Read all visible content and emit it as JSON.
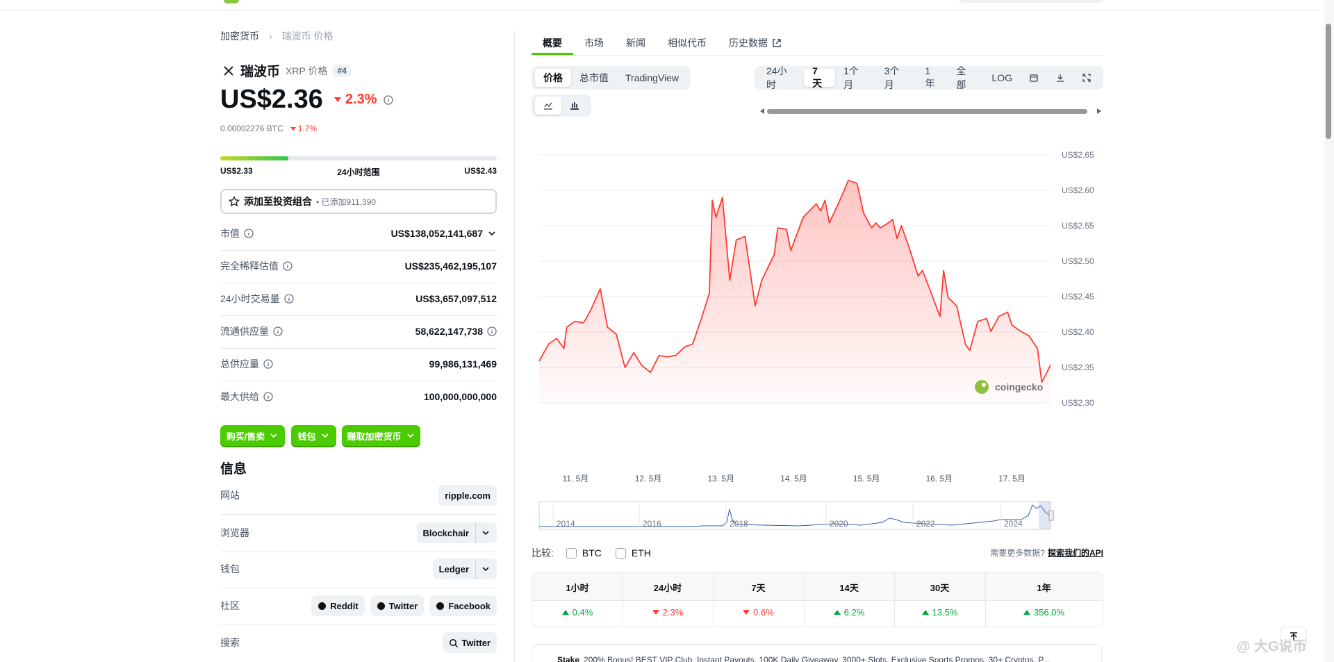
{
  "breadcrumb": [
    "加密货币",
    "瑞波币 价格"
  ],
  "coin": {
    "name": "瑞波币",
    "symbol": "XRP 价格",
    "rank": "#4",
    "price": "US$2.36",
    "change": "2.3%",
    "btc_price": "0.00002276 BTC",
    "btc_change": "1.7%"
  },
  "range": {
    "low": "US$2.33",
    "label": "24小时范围",
    "high": "US$2.43"
  },
  "portfolio": {
    "button": "添加至投资组合",
    "added": "• 已添加911,390"
  },
  "stats": [
    {
      "label": "市值",
      "value": "US$138,052,141,687"
    },
    {
      "label": "完全稀释估值",
      "value": "US$235,462,195,107"
    },
    {
      "label": "24小时交易量",
      "value": "US$3,657,097,512"
    },
    {
      "label": "流通供应量",
      "value": "58,622,147,738"
    },
    {
      "label": "总供应量",
      "value": "99,986,131,469"
    },
    {
      "label": "最大供给",
      "value": "100,000,000,000"
    }
  ],
  "actions": [
    "购买/售卖",
    "钱包",
    "赚取加密货币"
  ],
  "info": {
    "title": "信息",
    "rows": [
      {
        "label": "网站",
        "items": [
          "ripple.com"
        ]
      },
      {
        "label": "浏览器",
        "items": [
          "Blockchair"
        ]
      },
      {
        "label": "钱包",
        "items": [
          "Ledger"
        ]
      },
      {
        "label": "社区",
        "items": [
          "Reddit",
          "Twitter",
          "Facebook"
        ]
      },
      {
        "label": "搜索",
        "items": [
          "Twitter"
        ]
      }
    ]
  },
  "tabs": [
    "概要",
    "市场",
    "新闻",
    "相似代币",
    "历史数据"
  ],
  "chart_modes": [
    "价格",
    "总市值",
    "TradingView"
  ],
  "ranges": [
    "24小时",
    "7天",
    "1个月",
    "3个月",
    "1年",
    "全部",
    "LOG"
  ],
  "chart_data": {
    "type": "line",
    "color": "#ff3a33",
    "x": [
      10.5,
      10.63,
      10.74,
      10.84,
      10.88,
      10.99,
      11.11,
      11.21,
      11.34,
      11.44,
      11.56,
      11.68,
      11.8,
      11.91,
      12.03,
      12.15,
      12.26,
      12.38,
      12.5,
      12.61,
      12.73,
      12.84,
      12.88,
      12.93,
      13.02,
      13.12,
      13.21,
      13.33,
      13.47,
      13.56,
      13.73,
      13.78,
      13.9,
      13.96,
      14.13,
      14.31,
      14.37,
      14.43,
      14.49,
      14.66,
      14.75,
      14.87,
      14.96,
      15.07,
      15.13,
      15.19,
      15.3,
      15.36,
      15.42,
      15.48,
      15.6,
      15.71,
      15.77,
      15.89,
      16.01,
      16.06,
      16.12,
      16.24,
      16.36,
      16.42,
      16.53,
      16.65,
      16.71,
      16.82,
      16.94,
      17.0,
      17.12,
      17.23,
      17.35,
      17.41,
      17.53
    ],
    "values": [
      2.359,
      2.383,
      2.391,
      2.377,
      2.407,
      2.415,
      2.413,
      2.431,
      2.461,
      2.407,
      2.397,
      2.35,
      2.371,
      2.353,
      2.343,
      2.367,
      2.365,
      2.367,
      2.379,
      2.383,
      2.419,
      2.455,
      2.586,
      2.562,
      2.59,
      2.473,
      2.53,
      2.535,
      2.437,
      2.473,
      2.509,
      2.547,
      2.545,
      2.515,
      2.562,
      2.581,
      2.571,
      2.586,
      2.554,
      2.592,
      2.614,
      2.61,
      2.568,
      2.547,
      2.554,
      2.547,
      2.554,
      2.559,
      2.532,
      2.55,
      2.515,
      2.479,
      2.487,
      2.455,
      2.422,
      2.487,
      2.449,
      2.437,
      2.383,
      2.374,
      2.415,
      2.419,
      2.401,
      2.422,
      2.428,
      2.41,
      2.401,
      2.395,
      2.377,
      2.329,
      2.353
    ],
    "xlim": [
      10.5,
      17.53
    ],
    "xticks": [
      {
        "value": 11,
        "label": "11. 5月"
      },
      {
        "value": 12,
        "label": "12. 5月"
      },
      {
        "value": 13,
        "label": "13. 5月"
      },
      {
        "value": 14,
        "label": "14. 5月"
      },
      {
        "value": 15,
        "label": "15. 5月"
      },
      {
        "value": 16,
        "label": "16. 5月"
      },
      {
        "value": 17,
        "label": "17. 5月"
      }
    ],
    "ylim": [
      2.3,
      2.65
    ],
    "yticks": [
      {
        "value": 2.3,
        "label": "US$2.30"
      },
      {
        "value": 2.35,
        "label": "US$2.35"
      },
      {
        "value": 2.4,
        "label": "US$2.40"
      },
      {
        "value": 2.45,
        "label": "US$2.45"
      },
      {
        "value": 2.5,
        "label": "US$2.50"
      },
      {
        "value": 2.55,
        "label": "US$2.55"
      },
      {
        "value": 2.6,
        "label": "US$2.60"
      },
      {
        "value": 2.65,
        "label": "US$2.65"
      }
    ],
    "grid": true,
    "watermark": "coingecko"
  },
  "navigator_years": [
    "2014",
    "2016",
    "2018",
    "2020",
    "2022",
    "2024"
  ],
  "compare": {
    "label": "比较:",
    "options": [
      "BTC",
      "ETH"
    ],
    "api_prompt": "需要更多数据?",
    "api_link": "探索我们的API"
  },
  "performance": {
    "headers": [
      "1小时",
      "24小时",
      "7天",
      "14天",
      "30天",
      "1年"
    ],
    "values": [
      "0.4%",
      "2.3%",
      "0.6%",
      "6.2%",
      "13.5%",
      "356.0%"
    ],
    "direction": [
      "up",
      "down",
      "down",
      "up",
      "up",
      "up"
    ]
  },
  "ad": {
    "title": "Stake",
    "text": "200% Bonus! BEST VIP Club. Instant Payouts. 100K Daily Giveaway. 3000+ Slots. Exclusive Sports Promos. 30+ Cryptos. P..."
  },
  "watermark": "@ 大G说币"
}
